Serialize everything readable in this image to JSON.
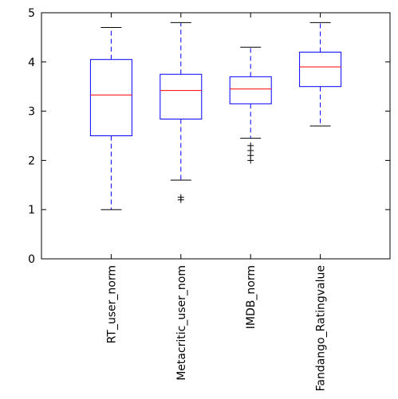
{
  "chart_data": {
    "type": "box",
    "title": "",
    "xlabel": "",
    "ylabel": "",
    "ylim": [
      0,
      5
    ],
    "yticks": [
      "0",
      "1",
      "2",
      "3",
      "4",
      "5"
    ],
    "grid": false,
    "categories": [
      "RT_user_norm",
      "Metacritic_user_nom",
      "IMDB_norm",
      "Fandango_Ratingvalue"
    ],
    "boxes": [
      {
        "whisker_low": 1.0,
        "q1": 2.5,
        "median": 3.33,
        "q3": 4.05,
        "whisker_high": 4.7,
        "outliers": []
      },
      {
        "whisker_low": 1.6,
        "q1": 2.84,
        "median": 3.42,
        "q3": 3.75,
        "whisker_high": 4.8,
        "outliers": [
          1.2,
          1.25
        ]
      },
      {
        "whisker_low": 2.45,
        "q1": 3.15,
        "median": 3.45,
        "q3": 3.7,
        "whisker_high": 4.3,
        "outliers": [
          2.0,
          2.1,
          2.2,
          2.3
        ]
      },
      {
        "whisker_low": 2.7,
        "q1": 3.5,
        "median": 3.9,
        "q3": 4.2,
        "whisker_high": 4.8,
        "outliers": []
      }
    ],
    "colors": {
      "box": "#0000ff",
      "median": "#ff0000",
      "axis": "#000000"
    }
  }
}
